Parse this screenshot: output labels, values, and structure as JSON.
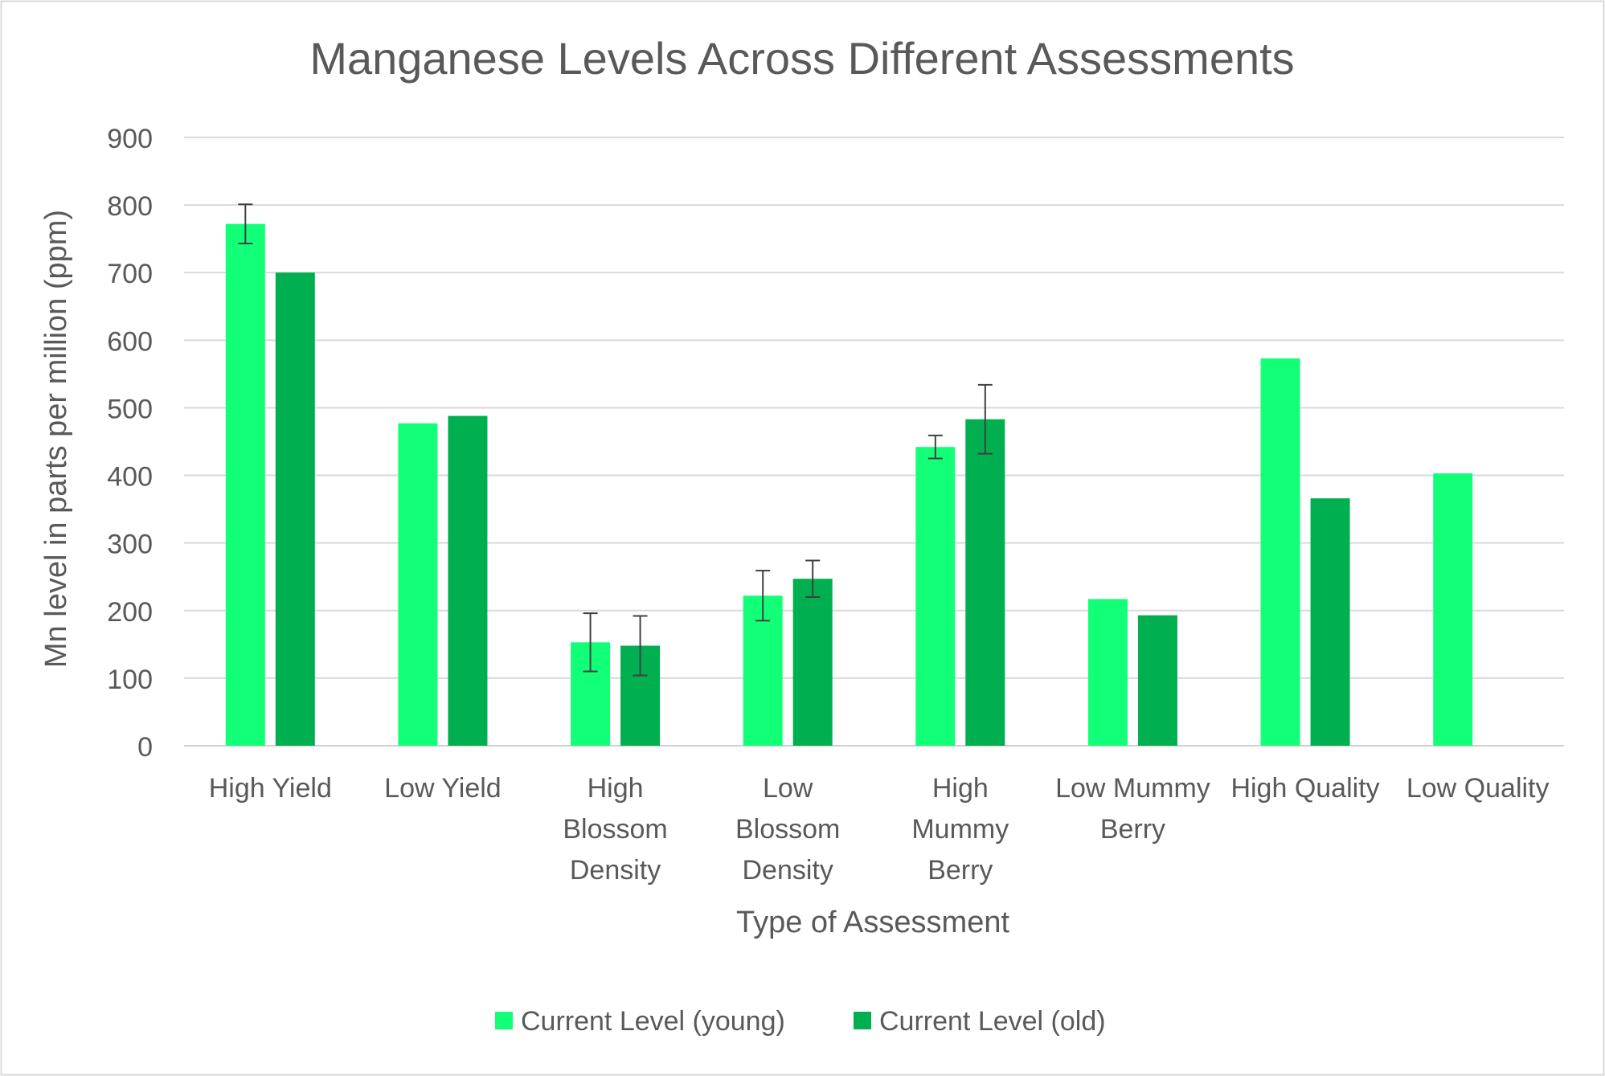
{
  "chart_data": {
    "type": "bar",
    "title": "Manganese Levels Across Different Assessments",
    "xlabel": "Type of Assessment",
    "ylabel": "Mn level in parts per million (ppm)",
    "ylim": [
      0,
      900
    ],
    "yticks": [
      0,
      100,
      200,
      300,
      400,
      500,
      600,
      700,
      800,
      900
    ],
    "grid": true,
    "legend_position": "bottom",
    "categories": [
      [
        "High Yield"
      ],
      [
        "Low Yield"
      ],
      [
        "High",
        "Blossom",
        "Density"
      ],
      [
        "Low",
        "Blossom",
        "Density"
      ],
      [
        "High",
        "Mummy",
        "Berry"
      ],
      [
        "Low Mummy",
        "Berry"
      ],
      [
        "High Quality"
      ],
      [
        "Low Quality"
      ]
    ],
    "series": [
      {
        "name": "Current Level (young)",
        "color": "#12FF78",
        "values": [
          772,
          477,
          153,
          222,
          442,
          217,
          573,
          403
        ],
        "error": [
          29,
          null,
          43,
          37,
          17,
          null,
          null,
          null
        ]
      },
      {
        "name": "Current Level (old)",
        "color": "#00B050",
        "values": [
          700,
          488,
          148,
          247,
          483,
          193,
          366,
          null
        ],
        "error": [
          null,
          null,
          44,
          27,
          51,
          null,
          null,
          null
        ]
      }
    ]
  }
}
